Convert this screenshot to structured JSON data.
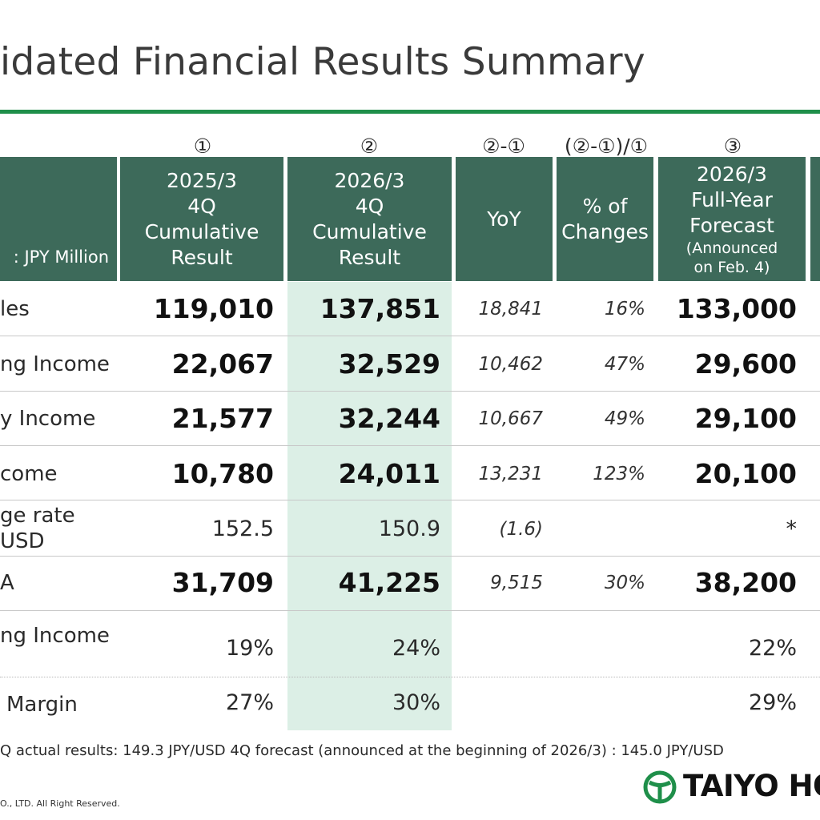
{
  "title": "idated Financial Results Summary",
  "header": {
    "circles": [
      "①",
      "②",
      "②-①",
      "(②-①)/①",
      "③"
    ],
    "unit": ": JPY Million",
    "col1": [
      "2025/3",
      "4Q",
      "Cumulative",
      "Result"
    ],
    "col2": [
      "2026/3",
      "4Q",
      "Cumulative",
      "Result"
    ],
    "col3": "YoY",
    "col4": [
      "% of",
      "Changes"
    ],
    "col5": [
      "2026/3",
      "Full-Year",
      "Forecast"
    ],
    "col5_note": [
      "(Announced",
      "on Feb. 4)"
    ]
  },
  "rows": [
    {
      "label": "les",
      "c1": "119,010",
      "c2": "137,851",
      "yoy": "18,841",
      "pct": "16%",
      "fc": "133,000"
    },
    {
      "label": "ng Income",
      "c1": "22,067",
      "c2": "32,529",
      "yoy": "10,462",
      "pct": "47%",
      "fc": "29,600"
    },
    {
      "label": "y Income",
      "c1": "21,577",
      "c2": "32,244",
      "yoy": "10,667",
      "pct": "49%",
      "fc": "29,100"
    },
    {
      "label": "come",
      "c1": "10,780",
      "c2": "24,011",
      "yoy": "13,231",
      "pct": "123%",
      "fc": "20,100"
    },
    {
      "label1": "ge rate",
      "label2": "USD",
      "c1": "152.5",
      "c2": "150.9",
      "yoy": "(1.6)",
      "pct": "",
      "fc": "*"
    },
    {
      "label": "A",
      "c1": "31,709",
      "c2": "41,225",
      "yoy": "9,515",
      "pct": "30%",
      "fc": "38,200"
    },
    {
      "label": "ng Income",
      "c1": "19%",
      "c2": "24%",
      "yoy": "",
      "pct": "",
      "fc": "22%"
    },
    {
      "label": "Margin",
      "c1": "27%",
      "c2": "30%",
      "yoy": "",
      "pct": "",
      "fc": "29%"
    }
  ],
  "footnote": "Q actual results: 149.3 JPY/USD    4Q forecast (announced at the beginning of 2026/3) : 145.0 JPY/USD",
  "copyright": "O., LTD.  All Right Reserved.",
  "logo": {
    "text": "TAIYO HOL",
    "icon": "taiyo-logo-icon",
    "color": "#1f8f4a"
  },
  "colors": {
    "header_bg": "#3d6a5a",
    "highlight": "#dcefe6",
    "rule": "#1f8f4a"
  }
}
